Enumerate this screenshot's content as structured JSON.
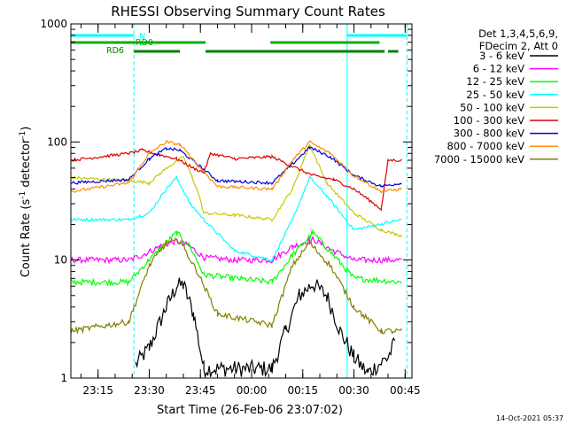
{
  "chart_data": {
    "type": "line",
    "title": "RHESSI Observing Summary Count Rates",
    "xlabel": "Start Time (26-Feb-06 23:07:02)",
    "ylabel_main": "Count Rate (s",
    "ylabel_sup1": "-1",
    "ylabel_mid": " detector",
    "ylabel_sup2": "-1",
    "ylabel_end": ")",
    "y_scale": "log",
    "ylim": [
      1,
      1000
    ],
    "xlim": [
      "23:07:02",
      "00:47:00"
    ],
    "x_tick_labels": [
      "23:15",
      "23:30",
      "23:45",
      "00:00",
      "00:15",
      "00:30",
      "00:45"
    ],
    "y_tick_labels": [
      "1",
      "10",
      "100",
      "1000"
    ],
    "grid": false,
    "legend_position": "right",
    "legend_header": [
      "Det 1,3,4,5,6,9,",
      "FDecim 2, Att 0"
    ],
    "timestamp": "14-Oct-2021 05:37",
    "flags": [
      {
        "label": "N",
        "color": "#00ffff",
        "segments": [
          [
            "23:07:02",
            "23:25:30"
          ],
          [
            "00:28:00",
            "00:45:30"
          ]
        ]
      },
      {
        "label": "RD0",
        "color": "#00b000",
        "segments": [
          [
            "23:07:02",
            "23:46:30"
          ],
          [
            "00:05:30",
            "00:37:30"
          ]
        ]
      },
      {
        "label": "RD6",
        "color": "#008000",
        "segments": [
          [
            "23:25:30",
            "23:39:00"
          ],
          [
            "23:46:30",
            "00:06:00"
          ],
          [
            "00:06:00",
            "00:39:00"
          ],
          [
            "00:40:00",
            "00:43:00"
          ]
        ]
      }
    ],
    "vertical_markers": [
      {
        "time": "23:07:02",
        "style": "solid"
      },
      {
        "time": "23:25:30",
        "style": "dashed"
      },
      {
        "time": "00:28:00",
        "style": "solid"
      },
      {
        "time": "00:45:30",
        "style": "dashed"
      }
    ],
    "series": [
      {
        "name": "3 - 6 keV",
        "color": "#000000",
        "values": [
          {
            "t": "23:07:02",
            "y": null
          },
          {
            "t": "23:24:00",
            "y": null
          },
          {
            "t": "23:26:00",
            "y": 1.3
          },
          {
            "t": "23:30:00",
            "y": 1.8
          },
          {
            "t": "23:35:00",
            "y": 4.0
          },
          {
            "t": "23:38:00",
            "y": 6.0
          },
          {
            "t": "23:40:00",
            "y": 6.2
          },
          {
            "t": "23:43:00",
            "y": 3.5
          },
          {
            "t": "23:46:00",
            "y": 1.2
          },
          {
            "t": "00:06:00",
            "y": 1.2
          },
          {
            "t": "00:10:00",
            "y": 2.5
          },
          {
            "t": "00:14:00",
            "y": 5.0
          },
          {
            "t": "00:18:00",
            "y": 6.3
          },
          {
            "t": "00:22:00",
            "y": 5.0
          },
          {
            "t": "00:26:00",
            "y": 2.5
          },
          {
            "t": "00:30:00",
            "y": 1.5
          },
          {
            "t": "00:34:00",
            "y": 1.1
          },
          {
            "t": "00:40:00",
            "y": 1.5
          },
          {
            "t": "00:42:00",
            "y": 2.0
          }
        ]
      },
      {
        "name": "6 - 12 keV",
        "color": "#ff00ff",
        "values": [
          {
            "t": "23:07:02",
            "y": 10.0
          },
          {
            "t": "23:24:00",
            "y": 10.0
          },
          {
            "t": "23:28:00",
            "y": 11.0
          },
          {
            "t": "23:33:00",
            "y": 13.0
          },
          {
            "t": "23:38:00",
            "y": 14.5
          },
          {
            "t": "23:42:00",
            "y": 13.0
          },
          {
            "t": "23:46:00",
            "y": 10.5
          },
          {
            "t": "23:55:00",
            "y": 10.0
          },
          {
            "t": "00:06:00",
            "y": 10.0
          },
          {
            "t": "00:12:00",
            "y": 13.0
          },
          {
            "t": "00:18:00",
            "y": 15.0
          },
          {
            "t": "00:24:00",
            "y": 12.0
          },
          {
            "t": "00:30:00",
            "y": 10.0
          },
          {
            "t": "00:44:00",
            "y": 10.0
          }
        ]
      },
      {
        "name": "12 - 25 keV",
        "color": "#00ff00",
        "values": [
          {
            "t": "23:07:02",
            "y": 6.5
          },
          {
            "t": "23:24:00",
            "y": 6.5
          },
          {
            "t": "23:30:00",
            "y": 10.0
          },
          {
            "t": "23:35:00",
            "y": 14.0
          },
          {
            "t": "23:38:00",
            "y": 17.0
          },
          {
            "t": "23:42:00",
            "y": 13.0
          },
          {
            "t": "23:46:00",
            "y": 7.5
          },
          {
            "t": "23:55:00",
            "y": 7.0
          },
          {
            "t": "00:06:00",
            "y": 6.5
          },
          {
            "t": "00:12:00",
            "y": 11.0
          },
          {
            "t": "00:18:00",
            "y": 17.0
          },
          {
            "t": "00:24:00",
            "y": 11.0
          },
          {
            "t": "00:30:00",
            "y": 7.0
          },
          {
            "t": "00:44:00",
            "y": 6.5
          }
        ]
      },
      {
        "name": "25 - 50 keV",
        "color": "#00ffff",
        "values": [
          {
            "t": "23:07:02",
            "y": 22.0
          },
          {
            "t": "23:24:00",
            "y": 22.0
          },
          {
            "t": "23:30:00",
            "y": 25.0
          },
          {
            "t": "23:35:00",
            "y": 40.0
          },
          {
            "t": "23:38:00",
            "y": 50.0
          },
          {
            "t": "23:42:00",
            "y": 30.0
          },
          {
            "t": "23:46:00",
            "y": 22.0
          },
          {
            "t": "23:55:00",
            "y": 12.0
          },
          {
            "t": "00:06:00",
            "y": 10.0
          },
          {
            "t": "00:12:00",
            "y": 22.0
          },
          {
            "t": "00:17:00",
            "y": 50.0
          },
          {
            "t": "00:22:00",
            "y": 35.0
          },
          {
            "t": "00:30:00",
            "y": 18.0
          },
          {
            "t": "00:44:00",
            "y": 22.0
          }
        ]
      },
      {
        "name": "50 - 100 keV",
        "color": "#c8c800",
        "values": [
          {
            "t": "23:07:02",
            "y": 50.0
          },
          {
            "t": "23:24:00",
            "y": 47.0
          },
          {
            "t": "23:30:00",
            "y": 45.0
          },
          {
            "t": "23:35:00",
            "y": 60.0
          },
          {
            "t": "23:40:00",
            "y": 75.0
          },
          {
            "t": "23:44:00",
            "y": 40.0
          },
          {
            "t": "23:46:00",
            "y": 25.0
          },
          {
            "t": "23:55:00",
            "y": 24.0
          },
          {
            "t": "00:06:00",
            "y": 22.0
          },
          {
            "t": "00:12:00",
            "y": 40.0
          },
          {
            "t": "00:17:00",
            "y": 95.0
          },
          {
            "t": "00:22:00",
            "y": 45.0
          },
          {
            "t": "00:30:00",
            "y": 25.0
          },
          {
            "t": "00:38:00",
            "y": 18.0
          },
          {
            "t": "00:44:00",
            "y": 16.0
          }
        ]
      },
      {
        "name": "100 - 300 keV",
        "color": "#e00000",
        "values": [
          {
            "t": "23:07:02",
            "y": 70.0
          },
          {
            "t": "23:24:00",
            "y": 80.0
          },
          {
            "t": "23:28:00",
            "y": 85.0
          },
          {
            "t": "23:33:00",
            "y": 78.0
          },
          {
            "t": "23:38:00",
            "y": 72.0
          },
          {
            "t": "23:43:00",
            "y": 60.0
          },
          {
            "t": "23:46:00",
            "y": 55.0
          },
          {
            "t": "23:48:00",
            "y": 80.0
          },
          {
            "t": "23:55:00",
            "y": 72.0
          },
          {
            "t": "00:06:00",
            "y": 75.0
          },
          {
            "t": "00:12:00",
            "y": 62.0
          },
          {
            "t": "00:18:00",
            "y": 52.0
          },
          {
            "t": "00:24:00",
            "y": 48.0
          },
          {
            "t": "00:30:00",
            "y": 40.0
          },
          {
            "t": "00:38:00",
            "y": 27.0
          },
          {
            "t": "00:40:00",
            "y": 70.0
          },
          {
            "t": "00:44:00",
            "y": 70.0
          }
        ]
      },
      {
        "name": "300 - 800 keV",
        "color": "#0000e0",
        "values": [
          {
            "t": "23:07:02",
            "y": 45.0
          },
          {
            "t": "23:24:00",
            "y": 48.0
          },
          {
            "t": "23:30:00",
            "y": 72.0
          },
          {
            "t": "23:35:00",
            "y": 88.0
          },
          {
            "t": "23:39:00",
            "y": 85.0
          },
          {
            "t": "23:44:00",
            "y": 65.0
          },
          {
            "t": "23:50:00",
            "y": 47.0
          },
          {
            "t": "00:06:00",
            "y": 45.0
          },
          {
            "t": "00:12:00",
            "y": 65.0
          },
          {
            "t": "00:17:00",
            "y": 90.0
          },
          {
            "t": "00:23:00",
            "y": 75.0
          },
          {
            "t": "00:30:00",
            "y": 52.0
          },
          {
            "t": "00:38:00",
            "y": 42.0
          },
          {
            "t": "00:44:00",
            "y": 45.0
          }
        ]
      },
      {
        "name": "800 - 7000 keV",
        "color": "#ff8c00",
        "values": [
          {
            "t": "23:07:02",
            "y": 38.0
          },
          {
            "t": "23:24:00",
            "y": 45.0
          },
          {
            "t": "23:30:00",
            "y": 80.0
          },
          {
            "t": "23:35:00",
            "y": 100.0
          },
          {
            "t": "23:39:00",
            "y": 95.0
          },
          {
            "t": "23:44:00",
            "y": 65.0
          },
          {
            "t": "23:50:00",
            "y": 42.0
          },
          {
            "t": "00:06:00",
            "y": 40.0
          },
          {
            "t": "00:12:00",
            "y": 70.0
          },
          {
            "t": "00:17:00",
            "y": 100.0
          },
          {
            "t": "00:23:00",
            "y": 80.0
          },
          {
            "t": "00:30:00",
            "y": 52.0
          },
          {
            "t": "00:38:00",
            "y": 38.0
          },
          {
            "t": "00:44:00",
            "y": 40.0
          }
        ]
      },
      {
        "name": "7000 - 15000 keV",
        "color": "#808000",
        "values": [
          {
            "t": "23:07:02",
            "y": 2.5
          },
          {
            "t": "23:24:00",
            "y": 3.0
          },
          {
            "t": "23:30:00",
            "y": 9.0
          },
          {
            "t": "23:35:00",
            "y": 14.0
          },
          {
            "t": "23:39:00",
            "y": 14.5
          },
          {
            "t": "23:44:00",
            "y": 8.0
          },
          {
            "t": "23:50:00",
            "y": 3.5
          },
          {
            "t": "00:06:00",
            "y": 2.8
          },
          {
            "t": "00:12:00",
            "y": 9.0
          },
          {
            "t": "00:17:00",
            "y": 14.0
          },
          {
            "t": "00:23:00",
            "y": 9.0
          },
          {
            "t": "00:30:00",
            "y": 4.0
          },
          {
            "t": "00:38:00",
            "y": 2.5
          },
          {
            "t": "00:44:00",
            "y": 2.5
          }
        ]
      }
    ]
  }
}
